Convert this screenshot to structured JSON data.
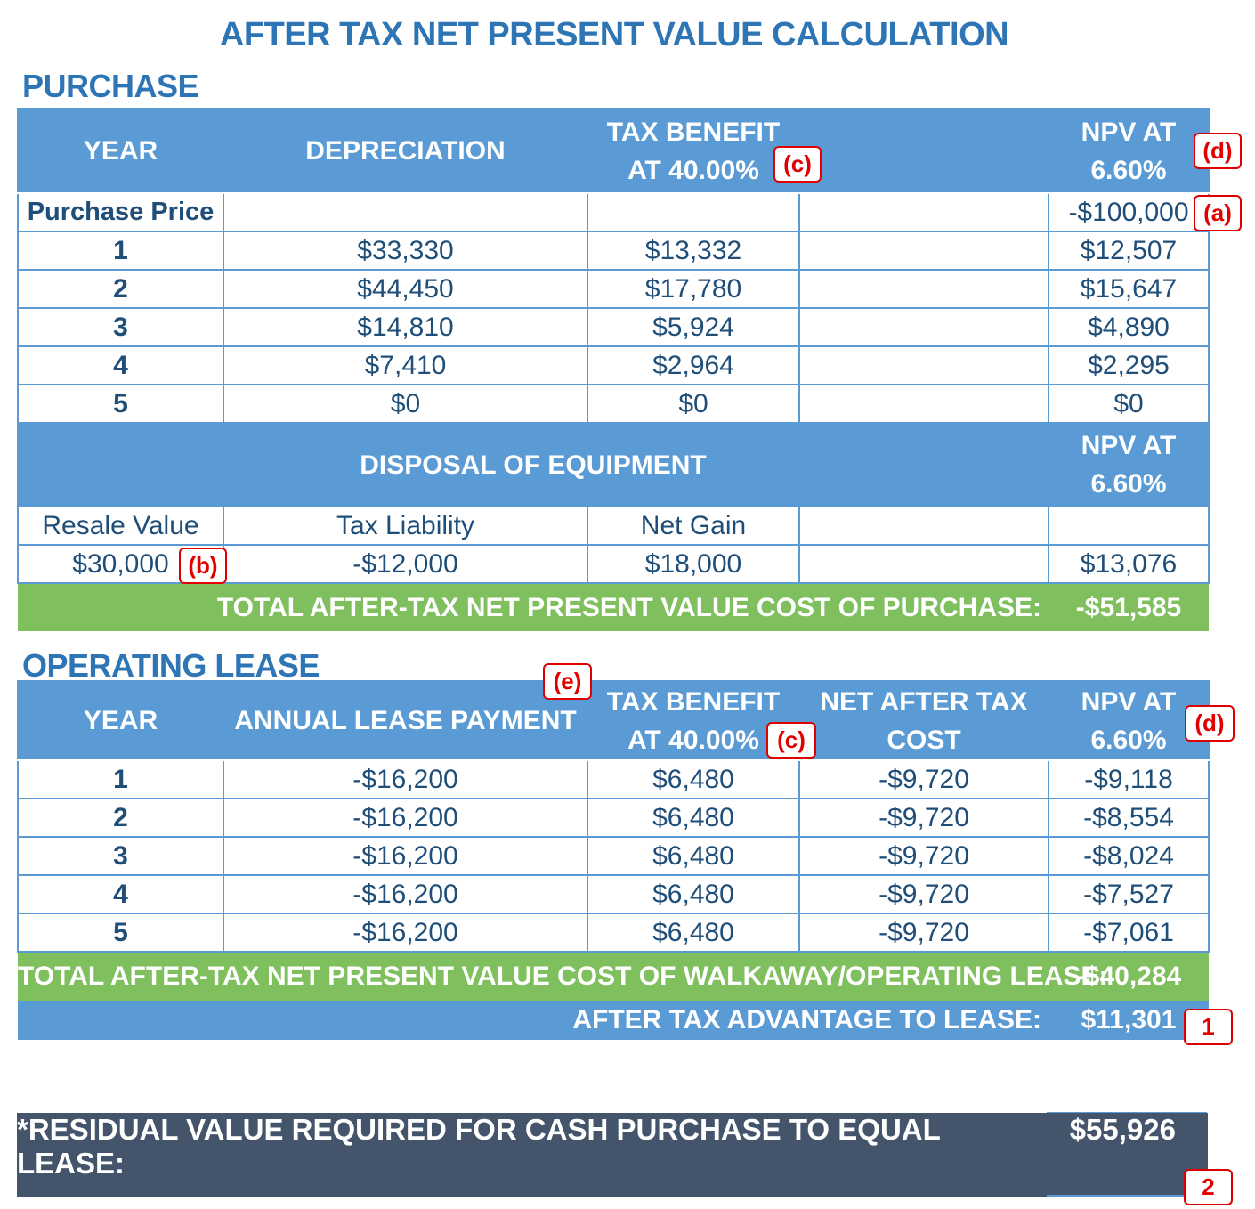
{
  "title": "AFTER TAX NET PRESENT VALUE CALCULATION",
  "purchase": {
    "section_title": "PURCHASE",
    "headers": {
      "year": "YEAR",
      "depreciation": "DEPRECIATION",
      "tax_benefit_1": "TAX BENEFIT",
      "tax_benefit_2": "AT 40.00%",
      "npv_1": "NPV AT",
      "npv_2": "6.60%"
    },
    "purchase_price": {
      "label": "Purchase Price",
      "npv": "-$100,000"
    },
    "rows": [
      {
        "year": "1",
        "depreciation": "$33,330",
        "tax_benefit": "$13,332",
        "npv": "$12,507"
      },
      {
        "year": "2",
        "depreciation": "$44,450",
        "tax_benefit": "$17,780",
        "npv": "$15,647"
      },
      {
        "year": "3",
        "depreciation": "$14,810",
        "tax_benefit": "$5,924",
        "npv": "$4,890"
      },
      {
        "year": "4",
        "depreciation": "$7,410",
        "tax_benefit": "$2,964",
        "npv": "$2,295"
      },
      {
        "year": "5",
        "depreciation": "$0",
        "tax_benefit": "$0",
        "npv": "$0"
      }
    ],
    "disposal": {
      "title": "DISPOSAL OF EQUIPMENT",
      "npv_1": "NPV AT",
      "npv_2": "6.60%",
      "col_resale": "Resale Value",
      "col_tax_liability": "Tax Liability",
      "col_net_gain": "Net Gain",
      "resale_value": "$30,000",
      "tax_liability": "-$12,000",
      "net_gain": "$18,000",
      "npv": "$13,076"
    },
    "total_label": "TOTAL AFTER-TAX NET PRESENT VALUE COST OF PURCHASE:",
    "total_value": "-$51,585"
  },
  "lease": {
    "section_title": "OPERATING LEASE",
    "headers": {
      "year": "YEAR",
      "payment": "ANNUAL LEASE PAYMENT",
      "tax_benefit_1": "TAX BENEFIT",
      "tax_benefit_2": "AT 40.00%",
      "net_1": "NET AFTER TAX",
      "net_2": "COST",
      "npv_1": "NPV AT",
      "npv_2": "6.60%"
    },
    "rows": [
      {
        "year": "1",
        "payment": "-$16,200",
        "tax_benefit": "$6,480",
        "net": "-$9,720",
        "npv": "-$9,118"
      },
      {
        "year": "2",
        "payment": "-$16,200",
        "tax_benefit": "$6,480",
        "net": "-$9,720",
        "npv": "-$8,554"
      },
      {
        "year": "3",
        "payment": "-$16,200",
        "tax_benefit": "$6,480",
        "net": "-$9,720",
        "npv": "-$8,024"
      },
      {
        "year": "4",
        "payment": "-$16,200",
        "tax_benefit": "$6,480",
        "net": "-$9,720",
        "npv": "-$7,527"
      },
      {
        "year": "5",
        "payment": "-$16,200",
        "tax_benefit": "$6,480",
        "net": "-$9,720",
        "npv": "-$7,061"
      }
    ],
    "total_label": "TOTAL AFTER-TAX NET PRESENT VALUE COST OF WALKAWAY/OPERATING LEASE:",
    "total_value": "-$40,284",
    "advantage_label": "AFTER TAX ADVANTAGE TO LEASE:",
    "advantage_value": "$11,301"
  },
  "residual": {
    "label": "*RESIDUAL VALUE REQUIRED FOR CASH PURCHASE TO EQUAL LEASE:",
    "value": "$55,926"
  },
  "annotations": {
    "a": "(a)",
    "b": "(b)",
    "c": "(c)",
    "d": "(d)",
    "e": "(e)",
    "one": "1",
    "two": "2"
  },
  "colors": {
    "header_blue": "#5b9bd5",
    "title_blue": "#2e75b6",
    "text_navy": "#1f4e79",
    "total_green": "#7fbf5e",
    "residual_slate": "#44546a",
    "tag_red": "#e00000"
  }
}
